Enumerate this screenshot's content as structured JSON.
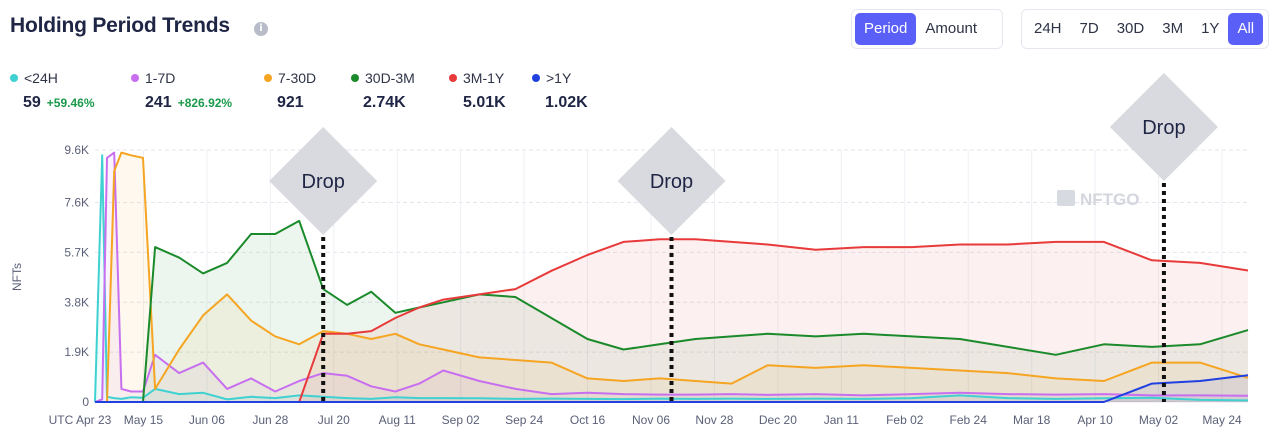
{
  "header": {
    "title": "Holding Period Trends",
    "info_icon": "info-icon"
  },
  "mode_toggle": {
    "options": [
      "Period",
      "Amount"
    ],
    "selected": "Period"
  },
  "range_toggle": {
    "options": [
      "24H",
      "7D",
      "30D",
      "3M",
      "1Y",
      "All"
    ],
    "selected": "All"
  },
  "watermark": "NFTGO",
  "colors": {
    "accent": "#5a5ff7",
    "positive": "#1a9a4a"
  },
  "chart_data": {
    "type": "area",
    "ylabel": "NFTs",
    "yticks": [
      0,
      1900,
      3800,
      5700,
      7600,
      9600
    ],
    "ytick_labels": [
      "0",
      "1.9K",
      "3.8K",
      "5.7K",
      "7.6K",
      "9.6K"
    ],
    "ylim": [
      0,
      9600
    ],
    "x_tick_labels": [
      "UTC Apr 23",
      "May 15",
      "Jun 06",
      "Jun 28",
      "Jul 20",
      "Aug 11",
      "Sep 02",
      "Sep 24",
      "Oct 16",
      "Nov 06",
      "Nov 28",
      "Dec 20",
      "Jan 11",
      "Feb 02",
      "Feb 24",
      "Mar 18",
      "Apr 10",
      "May 02",
      "May 24"
    ],
    "grid": true,
    "legend_placement": "top-left",
    "x": [
      0,
      3,
      5,
      8,
      11,
      15,
      20,
      25,
      35,
      45,
      55,
      65,
      75,
      85,
      95,
      105,
      115,
      125,
      135,
      145,
      160,
      175,
      190,
      205,
      220,
      235,
      250,
      265,
      280,
      300,
      320,
      340,
      360,
      380,
      400,
      420,
      440,
      460,
      480
    ],
    "series": [
      {
        "name": "<24H",
        "color": "#3fd1d1",
        "current": "59",
        "change": "+59.46%",
        "values": [
          0,
          9400,
          200,
          150,
          120,
          180,
          160,
          500,
          300,
          350,
          100,
          200,
          150,
          250,
          200,
          150,
          120,
          180,
          150,
          150,
          140,
          120,
          130,
          120,
          110,
          130,
          120,
          130,
          120,
          130,
          120,
          150,
          250,
          150,
          120,
          140,
          160,
          80,
          60
        ]
      },
      {
        "name": "1-7D",
        "color": "#c86ff0",
        "current": "241",
        "change": "+826.92%",
        "values": [
          0,
          100,
          9300,
          9500,
          500,
          400,
          400,
          1800,
          1100,
          1500,
          500,
          900,
          400,
          800,
          1100,
          1000,
          600,
          400,
          700,
          1200,
          800,
          500,
          300,
          350,
          300,
          280,
          280,
          300,
          270,
          300,
          250,
          300,
          350,
          300,
          280,
          300,
          250,
          250,
          240
        ]
      },
      {
        "name": "7-30D",
        "color": "#f5a522",
        "current": "921",
        "change": "",
        "values": [
          0,
          0,
          0,
          8800,
          9500,
          9400,
          9300,
          500,
          2000,
          3300,
          4100,
          3100,
          2500,
          2200,
          2700,
          2600,
          2400,
          2600,
          2200,
          2000,
          1700,
          1600,
          1500,
          900,
          800,
          900,
          800,
          700,
          1400,
          1300,
          1400,
          1300,
          1200,
          1100,
          900,
          800,
          1500,
          1500,
          921
        ]
      },
      {
        "name": "30D-3M",
        "color": "#1a8a2a",
        "current": "2.74K",
        "change": "",
        "values": [
          0,
          0,
          0,
          0,
          0,
          0,
          0,
          5900,
          5500,
          4900,
          5300,
          6400,
          6400,
          6900,
          4300,
          3700,
          4200,
          3400,
          3600,
          3800,
          4100,
          4000,
          3200,
          2400,
          2000,
          2200,
          2400,
          2500,
          2600,
          2500,
          2600,
          2500,
          2400,
          2100,
          1800,
          2200,
          2100,
          2200,
          2740
        ]
      },
      {
        "name": "3M-1Y",
        "color": "#e83a3a",
        "current": "5.01K",
        "change": "",
        "values": [
          0,
          0,
          0,
          0,
          0,
          0,
          0,
          0,
          0,
          0,
          0,
          0,
          0,
          0,
          2600,
          2600,
          2700,
          3200,
          3600,
          3900,
          4100,
          4300,
          5000,
          5600,
          6100,
          6200,
          6200,
          6100,
          6000,
          5800,
          5900,
          5900,
          6000,
          6000,
          6100,
          6100,
          5400,
          5300,
          5010
        ]
      },
      {
        "name": ">1Y",
        "color": "#2040e0",
        "current": "1.02K",
        "change": "",
        "values": [
          0,
          0,
          0,
          0,
          0,
          0,
          0,
          0,
          0,
          0,
          0,
          0,
          0,
          0,
          0,
          0,
          0,
          0,
          0,
          0,
          0,
          0,
          0,
          0,
          0,
          0,
          0,
          0,
          0,
          0,
          0,
          0,
          0,
          0,
          0,
          0,
          700,
          800,
          1020
        ]
      }
    ],
    "annotations": [
      {
        "label": "Drop",
        "x": 95
      },
      {
        "label": "Drop",
        "x": 240
      },
      {
        "label": "Drop",
        "x": 445
      }
    ]
  }
}
